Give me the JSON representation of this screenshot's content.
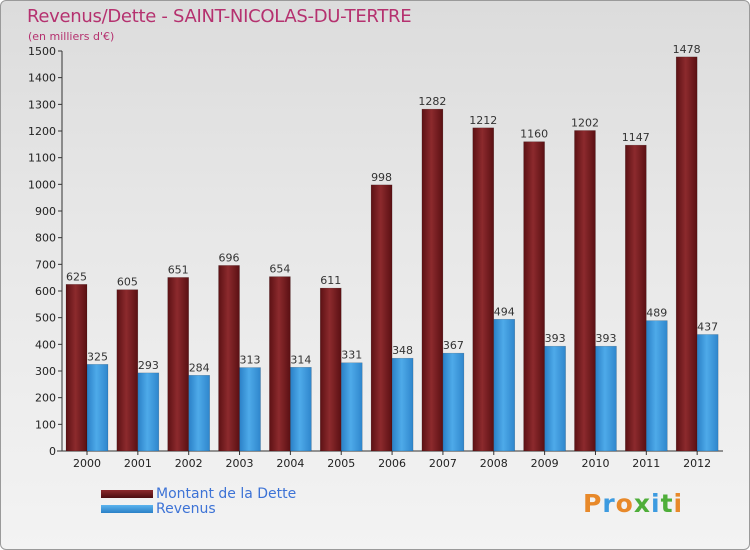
{
  "title": "Revenus/Dette - SAINT-NICOLAS-DU-TERTRE",
  "subtitle": "(en milliers d'€)",
  "chart_data": {
    "type": "bar",
    "categories": [
      "2000",
      "2001",
      "2002",
      "2003",
      "2004",
      "2005",
      "2006",
      "2007",
      "2008",
      "2009",
      "2010",
      "2011",
      "2012"
    ],
    "series": [
      {
        "name": "Montant de la Dette",
        "color": "#7a1f22",
        "values": [
          625,
          605,
          651,
          696,
          654,
          611,
          998,
          1282,
          1212,
          1160,
          1202,
          1147,
          1478
        ]
      },
      {
        "name": "Revenus",
        "color": "#3d9be0",
        "values": [
          325,
          293,
          284,
          313,
          314,
          331,
          348,
          367,
          494,
          393,
          393,
          489,
          437
        ]
      }
    ],
    "ylim": [
      0,
      1500
    ],
    "yticks": [
      0,
      100,
      200,
      300,
      400,
      500,
      600,
      700,
      800,
      900,
      1000,
      1100,
      1200,
      1300,
      1400,
      1500
    ],
    "grid": false,
    "legend_position": "bottom-left"
  },
  "logo": {
    "text": "Proxiti",
    "colors": [
      "#e8892a",
      "#3d9be0",
      "#e8892a",
      "#4fae3a",
      "#3d9be0",
      "#4fae3a",
      "#e8892a"
    ]
  }
}
